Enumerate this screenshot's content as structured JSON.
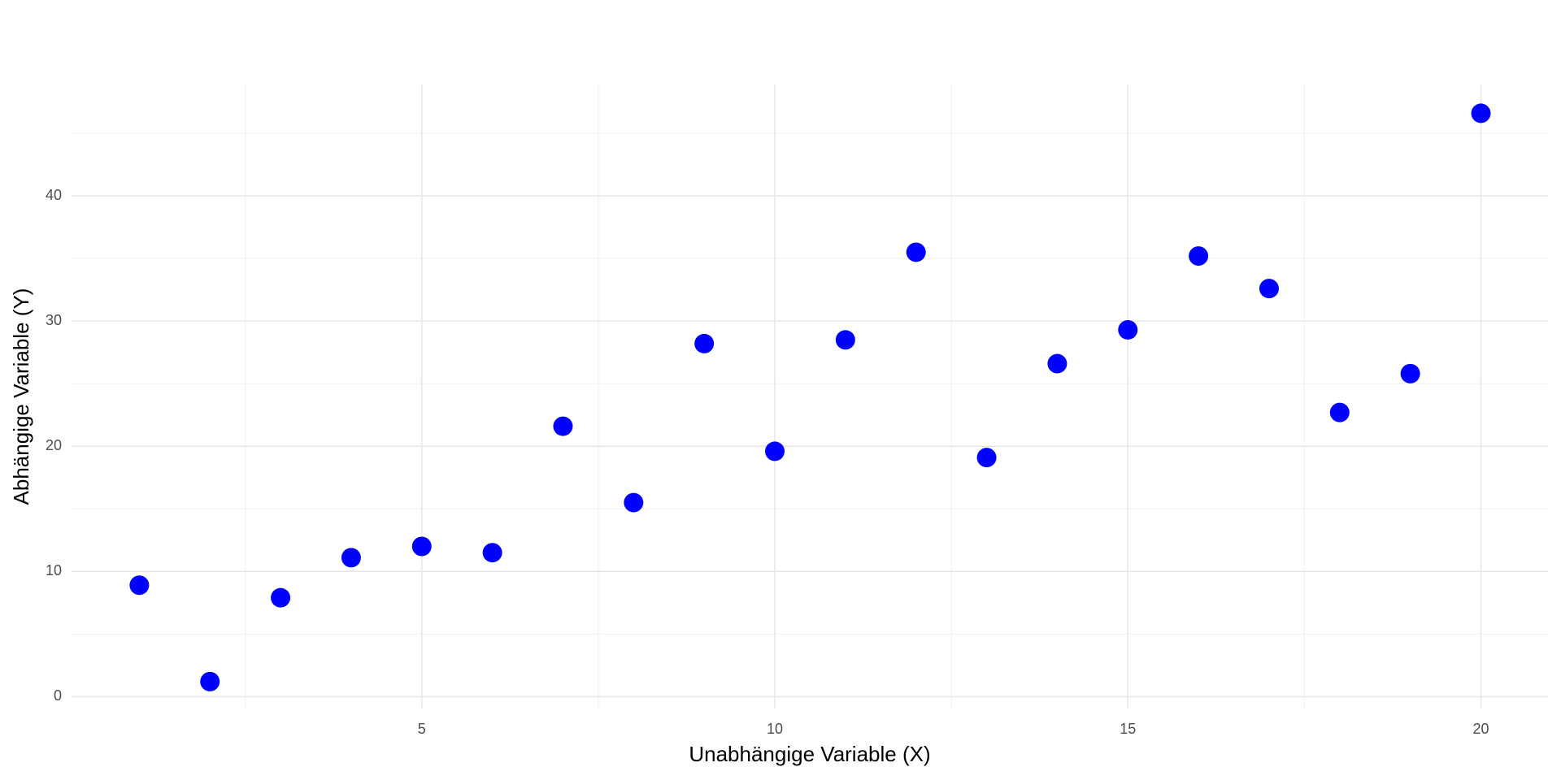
{
  "chart_data": {
    "type": "scatter",
    "x_label": "Unabhängige Variable (X)",
    "y_label": "Abhängige Variable (Y)",
    "x": [
      1,
      2,
      3,
      4,
      5,
      6,
      7,
      8,
      9,
      10,
      11,
      12,
      13,
      14,
      15,
      16,
      17,
      18,
      19,
      20
    ],
    "series": [
      {
        "color": "#0000ff",
        "values": [
          8.9,
          1.2,
          7.9,
          11.1,
          12.0,
          11.5,
          21.6,
          15.5,
          28.2,
          19.6,
          28.5,
          35.5,
          19.1,
          26.6,
          29.3,
          35.2,
          32.6,
          22.7,
          25.8,
          46.6
        ]
      }
    ],
    "xlim": [
      0.04,
      20.95
    ],
    "ylim": [
      -0.95,
      48.9
    ],
    "xticks": [
      5,
      10,
      15,
      20
    ],
    "yticks": [
      0,
      10,
      20,
      30,
      40
    ],
    "x_minor_grid": [
      2.5,
      7.5,
      12.5,
      17.5
    ],
    "y_minor_grid": [
      5,
      15,
      25,
      35,
      45
    ],
    "grid": true
  }
}
